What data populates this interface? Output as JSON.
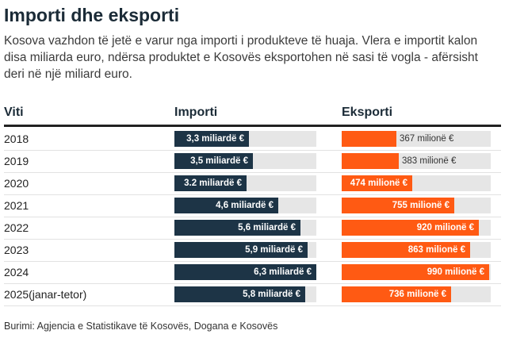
{
  "title": "Importi dhe eksporti",
  "subtitle": "Kosova vazhdon të jetë e varur nga importi i produkteve të huaja. Vlera e importit kalon disa miliarda euro, ndërsa produktet e Kosovës eksportohen në sasi të vogla - afërsisht deri në një miliard euro.",
  "source": "Burimi: Agjencia e Statistikave të Kosovës, Dogana e Kosovës",
  "colors": {
    "import": "#1d3446",
    "export": "#ff5a13",
    "track": "#e6e6e6"
  },
  "chart_data": {
    "type": "table",
    "headers": {
      "year": "Viti",
      "import": "Importi",
      "export": "Eksporti"
    },
    "rows": [
      {
        "year": "2018",
        "import": 3.3,
        "import_label": "3,3 miliardë €",
        "export": 367,
        "export_label": "367 milionë €"
      },
      {
        "year": "2019",
        "import": 3.5,
        "import_label": "3,5 miliardë €",
        "export": 383,
        "export_label": "383 milionë €"
      },
      {
        "year": "2020",
        "import": 3.2,
        "import_label": "3.2 miliardë €",
        "export": 474,
        "export_label": "474 milionë €"
      },
      {
        "year": "2021",
        "import": 4.6,
        "import_label": "4,6 miliardë €",
        "export": 755,
        "export_label": "755 milionë €"
      },
      {
        "year": "2022",
        "import": 5.6,
        "import_label": "5,6 miliardë €",
        "export": 920,
        "export_label": "920 milionë €"
      },
      {
        "year": "2023",
        "import": 5.9,
        "import_label": "5,9 miliardë €",
        "export": 863,
        "export_label": "863 milionë €"
      },
      {
        "year": "2024",
        "import": 6.3,
        "import_label": "6,3 miliardë €",
        "export": 990,
        "export_label": "990 milionë €"
      },
      {
        "year": "2025(janar-tetor)",
        "import": 5.8,
        "import_label": "5,8 miliardë €",
        "export": 736,
        "export_label": "736 milionë €"
      }
    ],
    "import_unit": "miliardë €",
    "export_unit": "milionë €",
    "import_max": 6.3,
    "export_max": 1000
  }
}
